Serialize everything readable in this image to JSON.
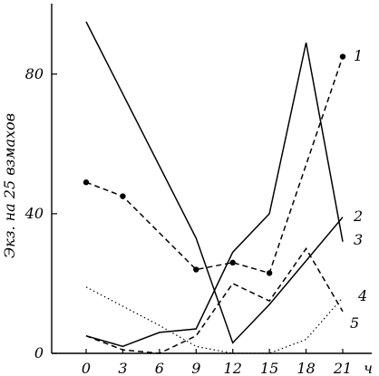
{
  "chart_data": {
    "type": "line",
    "title": "",
    "ylabel": "Экз. на 25 взмахов",
    "xlabel_unit": "ч",
    "xlim": [
      0,
      21
    ],
    "ylim": [
      0,
      95
    ],
    "x_ticks": [
      "0",
      "3",
      "6",
      "9",
      "12",
      "15",
      "18",
      "21"
    ],
    "y_ticks": [
      "0",
      "40",
      "80"
    ],
    "grid": false,
    "series": [
      {
        "label": "1",
        "style": "dashed",
        "markers": true,
        "x": [
          0,
          3,
          9,
          12,
          15,
          21
        ],
        "y": [
          49,
          45,
          24,
          26,
          23,
          85
        ]
      },
      {
        "label": "2",
        "style": "solid",
        "markers": false,
        "x": [
          0,
          3,
          6,
          9,
          12,
          15,
          18,
          21
        ],
        "y": [
          5,
          2,
          6,
          7,
          29,
          40,
          89,
          32
        ]
      },
      {
        "label": "3",
        "style": "solid",
        "markers": false,
        "x": [
          0,
          9,
          12,
          15,
          21
        ],
        "y": [
          95,
          33,
          3,
          14,
          39
        ]
      },
      {
        "label": "4",
        "style": "dashed",
        "markers": false,
        "x": [
          0,
          3,
          6,
          9,
          12,
          15,
          18,
          21
        ],
        "y": [
          5,
          1,
          0,
          5,
          20,
          15,
          30,
          12
        ]
      },
      {
        "label": "5",
        "style": "dotted",
        "markers": false,
        "x": [
          0,
          6,
          9,
          12,
          15,
          18,
          21
        ],
        "y": [
          19,
          8,
          2,
          0,
          0,
          4,
          16
        ]
      }
    ]
  }
}
